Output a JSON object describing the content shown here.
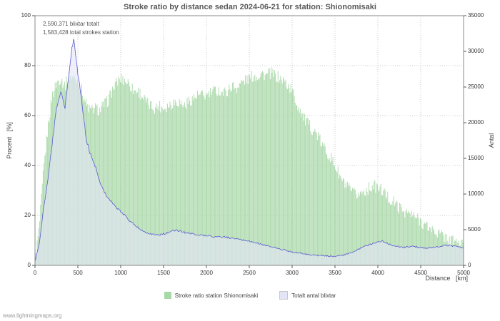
{
  "title": "Stroke ratio by distance sedan 2024-06-21 for station: Shionomisaki",
  "annotation": {
    "line1": "2,590,371 blixtar totalt",
    "line2": "1,583,428 total strokes station"
  },
  "footer": "www.lightningmaps.org",
  "colors": {
    "green": "#a8d8a8",
    "lavender": "#e4e4f8",
    "line_blue": "#5c5cd0",
    "grid": "#c8c8c8",
    "axis": "#888888",
    "tick": "#555555"
  },
  "legend": [
    {
      "label": "Stroke ratio station Shionomisaki",
      "color": "#a8d8a8"
    },
    {
      "label": "Totalt antal blixtar",
      "color": "#e4e4f8"
    }
  ],
  "axes": {
    "y_left": {
      "label": "Procent   [%]",
      "min": 0,
      "max": 100,
      "ticks": [
        0,
        20,
        40,
        60,
        80,
        100
      ]
    },
    "y_right": {
      "label": "Antal",
      "min": 0,
      "max": 35000,
      "ticks": [
        0,
        5000,
        10000,
        15000,
        20000,
        25000,
        30000,
        35000
      ]
    },
    "x": {
      "label": "Distance   [km]",
      "min": 0,
      "max": 5000,
      "ticks": [
        0,
        500,
        1000,
        1500,
        2000,
        2500,
        3000,
        3500,
        4000,
        4500,
        5000
      ]
    }
  },
  "chart_data": {
    "type": "bar",
    "title": "Stroke ratio by distance sedan 2024-06-21 for station: Shionomisaki",
    "xlabel": "Distance [km]",
    "ylabel_left": "Procent [%]",
    "ylabel_right": "Antal",
    "xlim": [
      0,
      5000
    ],
    "ylim_left": [
      0,
      100
    ],
    "ylim_right": [
      0,
      35000
    ],
    "grid": true,
    "legend_position": "bottom",
    "x": [
      0,
      50,
      100,
      150,
      200,
      250,
      300,
      350,
      400,
      450,
      500,
      550,
      600,
      650,
      700,
      750,
      800,
      850,
      900,
      950,
      1000,
      1050,
      1100,
      1150,
      1200,
      1250,
      1300,
      1350,
      1400,
      1450,
      1500,
      1550,
      1600,
      1650,
      1700,
      1750,
      1800,
      1850,
      1900,
      1950,
      2000,
      2050,
      2100,
      2150,
      2200,
      2250,
      2300,
      2350,
      2400,
      2450,
      2500,
      2550,
      2600,
      2650,
      2700,
      2750,
      2800,
      2850,
      2900,
      2950,
      3000,
      3050,
      3100,
      3150,
      3200,
      3250,
      3300,
      3350,
      3400,
      3450,
      3500,
      3550,
      3600,
      3650,
      3700,
      3750,
      3800,
      3850,
      3900,
      3950,
      4000,
      4050,
      4100,
      4150,
      4200,
      4250,
      4300,
      4350,
      4400,
      4450,
      4500,
      4550,
      4600,
      4650,
      4700,
      4750,
      4800,
      4850,
      4900,
      4950,
      5000
    ],
    "series": [
      {
        "name": "Stroke ratio station Shionomisaki",
        "axis": "left",
        "type": "bar",
        "unit": "%",
        "values": [
          2,
          15,
          38,
          55,
          68,
          73,
          75,
          72,
          76,
          75,
          74,
          70,
          64,
          62,
          63,
          62,
          64,
          66,
          70,
          73,
          75,
          74,
          73,
          70,
          70,
          68,
          65,
          64,
          63,
          64,
          63,
          64,
          65,
          66,
          65,
          64,
          66,
          67,
          68,
          68,
          68,
          69,
          70,
          70,
          69,
          70,
          72,
          71,
          73,
          74,
          75,
          76,
          76,
          77,
          76,
          77,
          76,
          75,
          74,
          72,
          70,
          65,
          62,
          58,
          56,
          54,
          52,
          48,
          46,
          43,
          40,
          36,
          33,
          31,
          29,
          28,
          29,
          30,
          31,
          32,
          31,
          30,
          28,
          26,
          25,
          23,
          22,
          21,
          20,
          19,
          18,
          16,
          15,
          14,
          13,
          12,
          11,
          10,
          10,
          9,
          8
        ]
      },
      {
        "name": "Totalt antal blixtar",
        "axis": "right",
        "type": "line-area",
        "unit": "strokes",
        "values": [
          500,
          3000,
          8000,
          12000,
          17000,
          22000,
          24500,
          22000,
          27500,
          32000,
          27000,
          22500,
          17500,
          15500,
          14000,
          12000,
          10500,
          9500,
          8800,
          8000,
          7600,
          7000,
          6300,
          5800,
          5300,
          4900,
          4600,
          4400,
          4300,
          4300,
          4400,
          4600,
          4800,
          4900,
          4800,
          4600,
          4500,
          4400,
          4300,
          4200,
          4200,
          4100,
          4000,
          4000,
          4000,
          3900,
          3800,
          3700,
          3600,
          3500,
          3400,
          3200,
          3100,
          2900,
          2800,
          2600,
          2500,
          2300,
          2200,
          2000,
          1900,
          1800,
          1700,
          1600,
          1500,
          1450,
          1400,
          1350,
          1300,
          1300,
          1300,
          1350,
          1450,
          1600,
          1800,
          2100,
          2400,
          2700,
          2900,
          3100,
          3300,
          3400,
          3100,
          2900,
          2700,
          2600,
          2500,
          2600,
          2650,
          2600,
          2500,
          2450,
          2400,
          2500,
          2600,
          2700,
          2800,
          2750,
          2700,
          2600,
          2400
        ]
      }
    ]
  }
}
